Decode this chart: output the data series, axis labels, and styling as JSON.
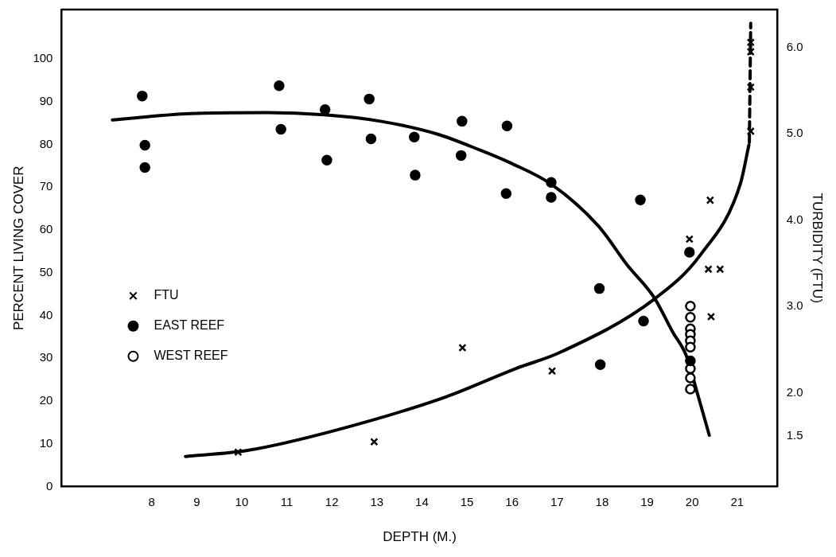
{
  "chart_data": {
    "type": "scatter",
    "xlabel": "DEPTH (M.)",
    "ylabel": "PERCENT LIVING COVER",
    "y2label": "TURBIDITY (FTU)",
    "xlim": [
      6.0,
      21.9
    ],
    "xticks": [
      8,
      9,
      10,
      11,
      12,
      13,
      14,
      15,
      16,
      17,
      18,
      19,
      20,
      21
    ],
    "ylim": [
      0,
      111.5
    ],
    "yticks": [
      0,
      10,
      20,
      30,
      40,
      50,
      60,
      70,
      80,
      90,
      100
    ],
    "y2lim": [
      0.91,
      6.44
    ],
    "y2ticks": [
      {
        "value": 1.5,
        "label": "1.5"
      },
      {
        "value": 2,
        "label": "2.0"
      },
      {
        "value": 3,
        "label": "3.0"
      },
      {
        "value": 4,
        "label": "4.0"
      },
      {
        "value": 5,
        "label": "5.0"
      },
      {
        "value": 6,
        "label": "6.0"
      }
    ],
    "grid": false,
    "legend": "left",
    "series": [
      {
        "name": "FTU",
        "type": "scatter",
        "marker": "cross",
        "axis": "y2",
        "color": "#000000",
        "x": [
          9.92,
          12.94,
          14.9,
          16.89,
          19.94,
          20.4,
          20.36,
          20.62,
          20.42,
          21.3,
          21.3,
          21.3,
          21.3
        ],
        "values": [
          1.31,
          1.43,
          2.52,
          2.25,
          3.78,
          4.23,
          3.43,
          3.43,
          2.88,
          6.06,
          5.95,
          5.54,
          5.03
        ]
      },
      {
        "name": "EAST REEF",
        "type": "scatter",
        "marker": "circle",
        "color": "#000000",
        "x": [
          7.79,
          7.85,
          7.85,
          10.83,
          10.87,
          11.85,
          11.89,
          12.83,
          12.87,
          13.83,
          13.85,
          14.89,
          14.87,
          15.89,
          15.87,
          16.87,
          16.87,
          17.94,
          17.96,
          18.85,
          18.92,
          19.94,
          19.96
        ],
        "values": [
          91.3,
          79.8,
          74.6,
          93.7,
          83.5,
          88.1,
          76.3,
          90.6,
          81.3,
          81.7,
          72.8,
          85.4,
          77.4,
          84.3,
          68.5,
          71.1,
          67.6,
          46.3,
          28.5,
          67.0,
          38.7,
          54.8,
          29.4
        ]
      },
      {
        "name": "WEST REEF",
        "type": "scatter",
        "marker": "circle",
        "color": "#ffffff",
        "x": [
          19.96,
          19.96,
          19.96,
          19.96,
          19.96,
          19.96,
          19.96,
          19.96,
          19.96
        ],
        "values": [
          42.2,
          39.6,
          36.9,
          35.6,
          34.1,
          32.6,
          27.6,
          25.4,
          22.8
        ]
      },
      {
        "type": "line",
        "color": "#000000",
        "line_style": "solid",
        "x": [
          7.13,
          8.87,
          10.57,
          11.83,
          13.08,
          14.34,
          15.28,
          16.0,
          16.87,
          17.92,
          18.55,
          19.15,
          19.57,
          19.87,
          20.13,
          20.38
        ],
        "values": [
          85.7,
          87.2,
          87.4,
          86.9,
          85.4,
          82.4,
          78.7,
          75.5,
          70.7,
          60.9,
          51.9,
          44.3,
          36.1,
          30.6,
          21.3,
          12.0
        ]
      },
      {
        "type": "line",
        "axis": "y2",
        "color": "#000000",
        "line_style": "solid",
        "x": [
          8.75,
          10.13,
          12.06,
          14.53,
          16.09,
          17.04,
          19.15,
          20.19,
          21.07,
          21.26
        ],
        "values": [
          1.26,
          1.33,
          1.56,
          1.95,
          2.28,
          2.46,
          3.08,
          3.6,
          4.42,
          4.87
        ]
      },
      {
        "type": "line",
        "axis": "y2",
        "color": "#000000",
        "line_style": "dashed",
        "x": [
          21.27,
          21.3
        ],
        "values": [
          4.9,
          6.28
        ]
      }
    ]
  }
}
